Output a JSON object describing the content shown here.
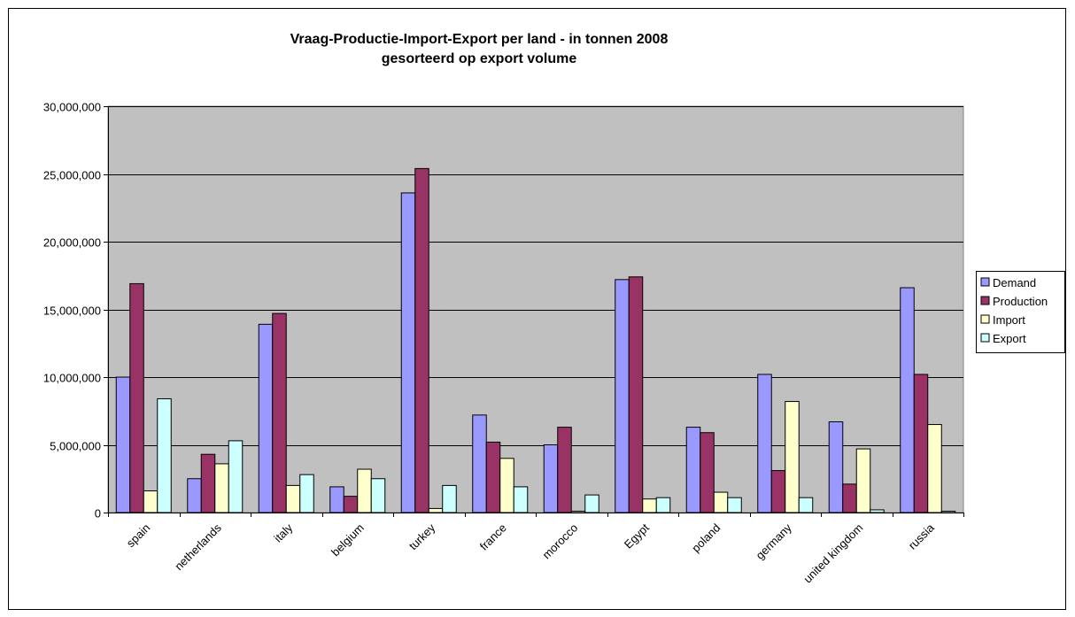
{
  "chart_data": {
    "type": "bar",
    "title": "Vraag-Productie-Import-Export per land - in tonnen 2008",
    "subtitle": "gesorteerd op export volume",
    "xlabel": "",
    "ylabel": "",
    "ylim": [
      0,
      30000000
    ],
    "yticks": [
      0,
      5000000,
      10000000,
      15000000,
      20000000,
      25000000,
      30000000
    ],
    "ytick_labels": [
      "0",
      "5,000,000",
      "10,000,000",
      "15,000,000",
      "20,000,000",
      "25,000,000",
      "30,000,000"
    ],
    "grid": true,
    "legend_position": "right",
    "plot_background": "#c0c0c0",
    "categories": [
      "spain",
      "netherlands",
      "italy",
      "belgium",
      "turkey",
      "france",
      "morocco",
      "Egypt",
      "poland",
      "germany",
      "united kingdom",
      "russia"
    ],
    "series": [
      {
        "name": "Demand",
        "color": "#9999ff",
        "values": [
          10000000,
          2500000,
          13900000,
          1900000,
          23600000,
          7200000,
          5000000,
          17200000,
          6300000,
          10200000,
          6700000,
          16600000
        ]
      },
      {
        "name": "Production",
        "color": "#993366",
        "values": [
          16900000,
          4300000,
          14700000,
          1200000,
          25400000,
          5200000,
          6300000,
          17400000,
          5900000,
          3100000,
          2100000,
          10200000
        ]
      },
      {
        "name": "Import",
        "color": "#ffffcc",
        "values": [
          1600000,
          3600000,
          2000000,
          3200000,
          300000,
          4000000,
          100000,
          1000000,
          1500000,
          8200000,
          4700000,
          6500000
        ]
      },
      {
        "name": "Export",
        "color": "#ccffff",
        "values": [
          8400000,
          5300000,
          2800000,
          2500000,
          2000000,
          1900000,
          1300000,
          1100000,
          1100000,
          1100000,
          200000,
          100000
        ]
      }
    ]
  }
}
